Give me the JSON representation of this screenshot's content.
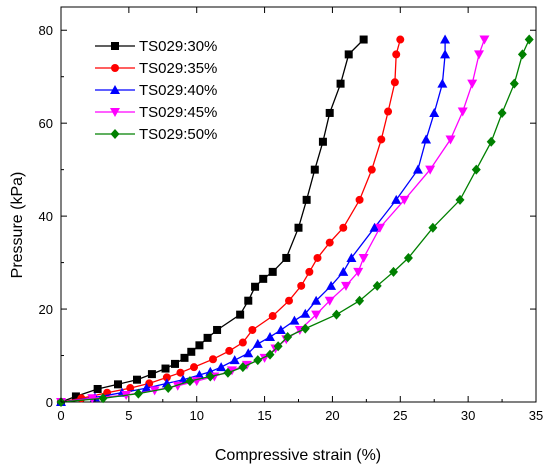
{
  "chart_data": {
    "type": "line",
    "title": "",
    "xlabel": "Compressive strain (%)",
    "ylabel": "Pressure (kPa)",
    "xlim": [
      0,
      35
    ],
    "ylim": [
      0,
      85
    ],
    "xticks": [
      0,
      5,
      10,
      15,
      20,
      25,
      30,
      35
    ],
    "yticks": [
      0,
      20,
      40,
      60,
      80
    ],
    "legend_position": "top-left",
    "grid": false,
    "series": [
      {
        "name": "TS029:30%",
        "color": "#000000",
        "marker": "square",
        "points": [
          [
            0,
            0
          ],
          [
            1.1,
            1.2
          ],
          [
            2.7,
            2.8
          ],
          [
            4.2,
            3.8
          ],
          [
            5.6,
            4.8
          ],
          [
            6.7,
            6.0
          ],
          [
            7.7,
            7.2
          ],
          [
            8.4,
            8.2
          ],
          [
            9.1,
            9.5
          ],
          [
            9.6,
            10.8
          ],
          [
            10.2,
            12.2
          ],
          [
            10.8,
            13.8
          ],
          [
            11.5,
            15.5
          ],
          [
            13.2,
            18.8
          ],
          [
            13.8,
            21.8
          ],
          [
            14.3,
            24.8
          ],
          [
            14.9,
            26.5
          ],
          [
            15.6,
            28.0
          ],
          [
            16.6,
            31.0
          ],
          [
            17.5,
            37.5
          ],
          [
            18.1,
            43.5
          ],
          [
            18.7,
            50.0
          ],
          [
            19.3,
            56.0
          ],
          [
            19.8,
            62.2
          ],
          [
            20.6,
            68.5
          ],
          [
            21.2,
            74.8
          ],
          [
            22.3,
            78.0
          ]
        ]
      },
      {
        "name": "TS029:35%",
        "color": "#ff0000",
        "marker": "circle",
        "points": [
          [
            0,
            0
          ],
          [
            1.5,
            0.8
          ],
          [
            3.4,
            2.0
          ],
          [
            5.1,
            3.0
          ],
          [
            6.5,
            4.0
          ],
          [
            7.8,
            5.3
          ],
          [
            8.8,
            6.3
          ],
          [
            9.8,
            7.5
          ],
          [
            11.2,
            9.2
          ],
          [
            12.4,
            11.0
          ],
          [
            13.4,
            12.8
          ],
          [
            14.1,
            15.5
          ],
          [
            15.6,
            18.5
          ],
          [
            16.8,
            21.8
          ],
          [
            17.7,
            25.0
          ],
          [
            18.3,
            28.0
          ],
          [
            18.9,
            31.0
          ],
          [
            19.8,
            34.3
          ],
          [
            20.8,
            37.5
          ],
          [
            22.0,
            43.5
          ],
          [
            22.9,
            50.0
          ],
          [
            23.6,
            56.5
          ],
          [
            24.1,
            62.5
          ],
          [
            24.6,
            68.8
          ],
          [
            24.7,
            74.8
          ],
          [
            25.0,
            78.0
          ]
        ]
      },
      {
        "name": "TS029:40%",
        "color": "#0000ff",
        "marker": "triangle-up",
        "points": [
          [
            0,
            0
          ],
          [
            2.5,
            1.0
          ],
          [
            4.5,
            2.0
          ],
          [
            6.3,
            3.0
          ],
          [
            7.8,
            4.0
          ],
          [
            9.0,
            4.8
          ],
          [
            10.2,
            5.8
          ],
          [
            11.0,
            6.5
          ],
          [
            11.8,
            7.5
          ],
          [
            12.8,
            9.0
          ],
          [
            13.8,
            10.5
          ],
          [
            14.5,
            12.5
          ],
          [
            15.4,
            14.0
          ],
          [
            16.2,
            15.5
          ],
          [
            17.2,
            17.5
          ],
          [
            18.0,
            19.0
          ],
          [
            18.8,
            21.8
          ],
          [
            19.9,
            25.0
          ],
          [
            20.8,
            28.0
          ],
          [
            21.4,
            31.0
          ],
          [
            23.1,
            37.5
          ],
          [
            24.7,
            43.5
          ],
          [
            26.3,
            50.0
          ],
          [
            26.9,
            56.5
          ],
          [
            27.5,
            62.2
          ],
          [
            28.1,
            68.5
          ],
          [
            28.3,
            74.8
          ],
          [
            28.3,
            78.0
          ]
        ]
      },
      {
        "name": "TS029:45%",
        "color": "#ff00ff",
        "marker": "triangle-down",
        "points": [
          [
            0,
            0
          ],
          [
            2.3,
            0.8
          ],
          [
            4.8,
            1.5
          ],
          [
            6.9,
            2.5
          ],
          [
            8.6,
            3.5
          ],
          [
            10.0,
            4.5
          ],
          [
            11.3,
            5.5
          ],
          [
            12.6,
            6.8
          ],
          [
            13.7,
            8.0
          ],
          [
            15.0,
            9.5
          ],
          [
            15.8,
            11.5
          ],
          [
            16.6,
            13.5
          ],
          [
            17.6,
            15.5
          ],
          [
            18.8,
            18.8
          ],
          [
            19.8,
            21.8
          ],
          [
            21.0,
            25.0
          ],
          [
            21.9,
            28.0
          ],
          [
            22.3,
            31.0
          ],
          [
            23.5,
            37.5
          ],
          [
            25.3,
            43.5
          ],
          [
            27.2,
            50.0
          ],
          [
            28.7,
            56.5
          ],
          [
            29.6,
            62.5
          ],
          [
            30.3,
            68.5
          ],
          [
            30.8,
            74.8
          ],
          [
            31.2,
            78.0
          ]
        ]
      },
      {
        "name": "TS029:50%",
        "color": "#008000",
        "marker": "diamond",
        "points": [
          [
            0,
            0
          ],
          [
            3.1,
            0.8
          ],
          [
            5.7,
            1.8
          ],
          [
            7.9,
            3.0
          ],
          [
            9.5,
            4.5
          ],
          [
            11.0,
            5.5
          ],
          [
            12.3,
            6.3
          ],
          [
            13.4,
            7.5
          ],
          [
            14.5,
            9.0
          ],
          [
            15.4,
            10.2
          ],
          [
            16.0,
            12.0
          ],
          [
            16.7,
            14.0
          ],
          [
            18.0,
            15.8
          ],
          [
            20.3,
            18.8
          ],
          [
            22.0,
            21.8
          ],
          [
            23.3,
            25.0
          ],
          [
            24.5,
            28.0
          ],
          [
            25.6,
            31.0
          ],
          [
            27.4,
            37.5
          ],
          [
            29.4,
            43.5
          ],
          [
            30.6,
            50.0
          ],
          [
            31.7,
            56.0
          ],
          [
            32.5,
            62.2
          ],
          [
            33.4,
            68.5
          ],
          [
            34.0,
            74.8
          ],
          [
            34.5,
            78.0
          ]
        ]
      }
    ]
  }
}
